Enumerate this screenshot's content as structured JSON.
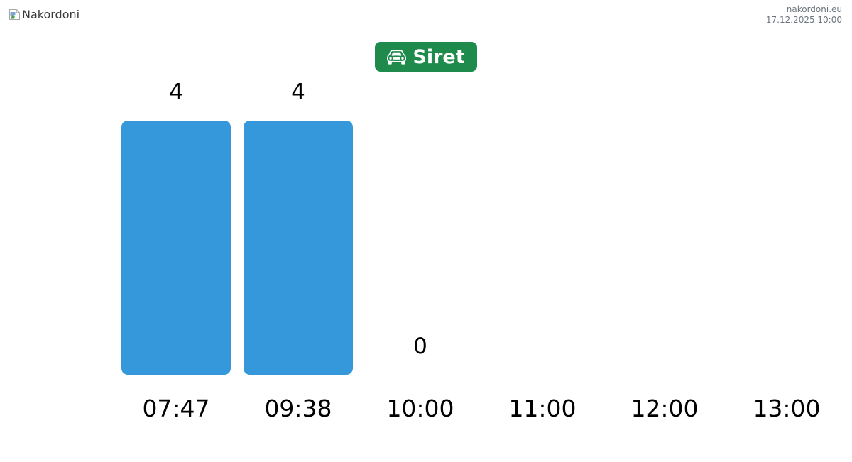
{
  "header": {
    "logo_alt": "Nakordoni",
    "site_link": "nakordoni.eu",
    "timestamp": "17.12.2025 10:00"
  },
  "checkpoint_button": {
    "label": "Siret",
    "icon": "car-front-icon",
    "background": "#1e8a4c",
    "text_color": "#ffffff"
  },
  "chart_data": {
    "type": "bar",
    "title": "",
    "xlabel": "",
    "ylabel": "",
    "categories": [
      "07:47",
      "09:38",
      "10:00",
      "11:00",
      "12:00",
      "13:00"
    ],
    "values": [
      4,
      4,
      0,
      null,
      null,
      null
    ],
    "value_labels": [
      "4",
      "4",
      "0",
      null,
      null,
      null
    ],
    "ylim": [
      0,
      4
    ],
    "grid": false,
    "legend": "none",
    "bar_color": "#3598da",
    "label_color": "#000000"
  }
}
